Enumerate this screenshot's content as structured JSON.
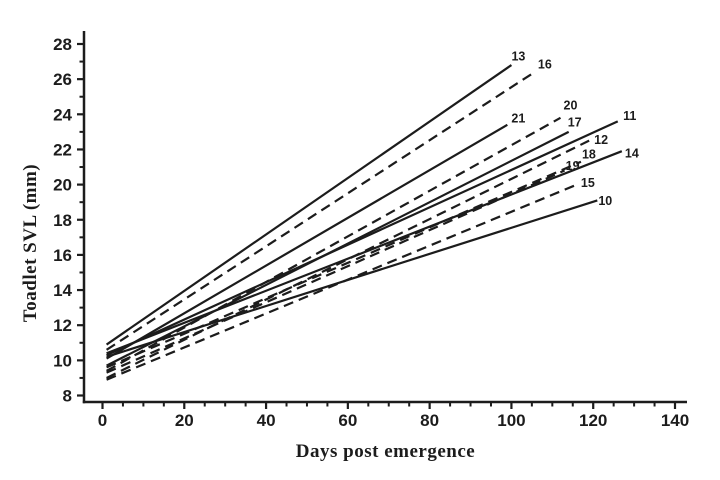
{
  "figure": {
    "background": "#ffffff",
    "ink_color": "#1c1c1c"
  },
  "chart_data": {
    "type": "line",
    "title": "",
    "xlabel": "Days post emergence",
    "ylabel": "Toadlet SVL (mm)",
    "xlim": [
      -4.5,
      143
    ],
    "ylim": [
      7.6,
      28.6
    ],
    "x_major_ticks": [
      0,
      20,
      40,
      60,
      80,
      100,
      120,
      140
    ],
    "x_minor_ticks": [
      5,
      10,
      15,
      25,
      30,
      35,
      45,
      50,
      55,
      65,
      70,
      75,
      85,
      90,
      95,
      105,
      110,
      115,
      125,
      130,
      135
    ],
    "y_major_ticks": [
      8,
      10,
      12,
      14,
      16,
      18,
      20,
      22,
      24,
      26,
      28
    ],
    "y_minor_ticks": [
      9,
      11,
      13,
      15,
      17,
      19,
      21,
      23,
      25,
      27
    ],
    "grid": false,
    "legend": "inline-end-of-line-labels",
    "line_color": "#1c1c1c",
    "series": [
      {
        "name": "10",
        "style": "solid",
        "points": [
          [
            1,
            10.2
          ],
          [
            121,
            19.1
          ]
        ],
        "label_offset": [
          8,
          0
        ]
      },
      {
        "name": "11",
        "style": "solid",
        "points": [
          [
            1,
            10.3
          ],
          [
            126,
            23.6
          ]
        ],
        "label_offset": [
          12,
          -6
        ]
      },
      {
        "name": "12",
        "style": "dashed",
        "points": [
          [
            1,
            9.0
          ],
          [
            119,
            22.5
          ]
        ],
        "label_offset": [
          12,
          -1
        ]
      },
      {
        "name": "13",
        "style": "solid",
        "points": [
          [
            1,
            10.9
          ],
          [
            100,
            26.8
          ]
        ],
        "label_offset": [
          7,
          -9
        ]
      },
      {
        "name": "14",
        "style": "solid",
        "points": [
          [
            1,
            10.4
          ],
          [
            127,
            21.9
          ]
        ],
        "label_offset": [
          10,
          2
        ]
      },
      {
        "name": "15",
        "style": "dashed",
        "points": [
          [
            1,
            8.9
          ],
          [
            116,
            20.0
          ]
        ],
        "label_offset": [
          11,
          -2
        ]
      },
      {
        "name": "16",
        "style": "dashed",
        "points": [
          [
            1,
            10.6
          ],
          [
            105,
            26.3
          ]
        ],
        "label_offset": [
          13,
          -10
        ]
      },
      {
        "name": "17",
        "style": "solid",
        "points": [
          [
            1,
            9.7
          ],
          [
            114,
            23.0
          ]
        ],
        "label_offset": [
          6,
          -10
        ]
      },
      {
        "name": "18",
        "style": "dashed",
        "points": [
          [
            1,
            9.6
          ],
          [
            117,
            21.3
          ]
        ],
        "label_offset": [
          8,
          -8
        ]
      },
      {
        "name": "19",
        "style": "dashed",
        "points": [
          [
            1,
            9.3
          ],
          [
            113,
            20.8
          ]
        ],
        "label_offset": [
          8,
          -5
        ]
      },
      {
        "name": "20",
        "style": "dashed",
        "points": [
          [
            1,
            9.4
          ],
          [
            112,
            23.8
          ]
        ],
        "label_offset": [
          10,
          -13
        ]
      },
      {
        "name": "21",
        "style": "solid",
        "points": [
          [
            1,
            10.1
          ],
          [
            99,
            23.4
          ]
        ],
        "label_offset": [
          11,
          -7
        ]
      }
    ]
  }
}
